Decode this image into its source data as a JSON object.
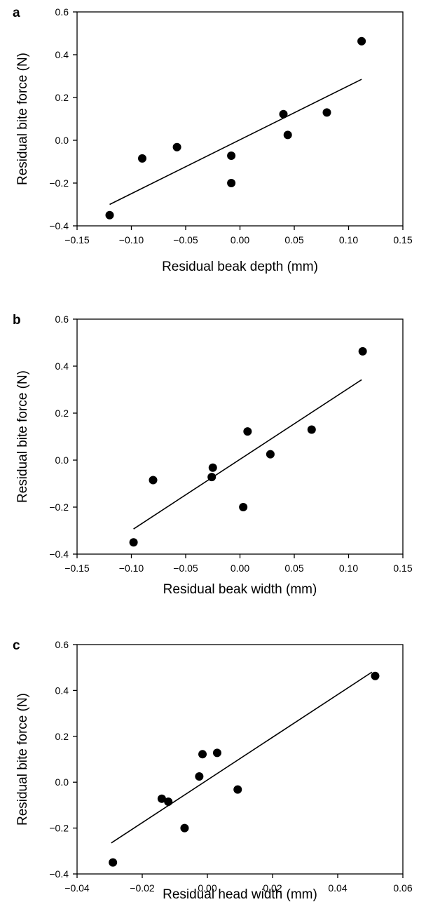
{
  "chart_data": [
    {
      "type": "scatter",
      "panel_label": "a",
      "title": "",
      "xlabel": "Residual beak depth (mm)",
      "ylabel": "Residual bite force (N)",
      "xlim": [
        -0.15,
        0.15
      ],
      "ylim": [
        -0.4,
        0.6
      ],
      "xticks": [
        "−0.15",
        "−0.10",
        "−0.05",
        "0.00",
        "0.05",
        "0.10",
        "0.15"
      ],
      "yticks": [
        "−0.4",
        "−0.2",
        "0.0",
        "0.2",
        "0.4",
        "0.6"
      ],
      "grid": false,
      "points": [
        {
          "x": -0.12,
          "y": -0.35
        },
        {
          "x": -0.09,
          "y": -0.085
        },
        {
          "x": -0.058,
          "y": -0.032
        },
        {
          "x": -0.008,
          "y": -0.072
        },
        {
          "x": -0.008,
          "y": -0.2
        },
        {
          "x": 0.04,
          "y": 0.122
        },
        {
          "x": 0.044,
          "y": 0.025
        },
        {
          "x": 0.08,
          "y": 0.13
        },
        {
          "x": 0.112,
          "y": 0.463
        }
      ],
      "trendline": {
        "x": [
          -0.12,
          0.112
        ],
        "y": [
          -0.3,
          0.285
        ]
      }
    },
    {
      "type": "scatter",
      "panel_label": "b",
      "title": "",
      "xlabel": "Residual beak width (mm)",
      "ylabel": "Residual bite force (N)",
      "xlim": [
        -0.15,
        0.15
      ],
      "ylim": [
        -0.4,
        0.6
      ],
      "xticks": [
        "−0.15",
        "−0.10",
        "−0.05",
        "0.00",
        "0.05",
        "0.10",
        "0.15"
      ],
      "yticks": [
        "−0.4",
        "−0.2",
        "0.0",
        "0.2",
        "0.4",
        "0.6"
      ],
      "grid": false,
      "points": [
        {
          "x": -0.098,
          "y": -0.35
        },
        {
          "x": -0.08,
          "y": -0.085
        },
        {
          "x": -0.025,
          "y": -0.032
        },
        {
          "x": -0.026,
          "y": -0.072
        },
        {
          "x": 0.003,
          "y": -0.2
        },
        {
          "x": 0.007,
          "y": 0.122
        },
        {
          "x": 0.028,
          "y": 0.025
        },
        {
          "x": 0.066,
          "y": 0.13
        },
        {
          "x": 0.113,
          "y": 0.463
        }
      ],
      "trendline": {
        "x": [
          -0.098,
          0.112
        ],
        "y": [
          -0.293,
          0.342
        ]
      }
    },
    {
      "type": "scatter",
      "panel_label": "c",
      "title": "",
      "xlabel": "Residual head width (mm)",
      "ylabel": "Residual bite force (N)",
      "xlim": [
        -0.04,
        0.06
      ],
      "ylim": [
        -0.4,
        0.6
      ],
      "xticks": [
        "−0.04",
        "−0.02",
        "0.00",
        "0.02",
        "0.04",
        "0.06"
      ],
      "yticks": [
        "−0.4",
        "−0.2",
        "0.0",
        "0.2",
        "0.4",
        "0.6"
      ],
      "grid": false,
      "points": [
        {
          "x": -0.029,
          "y": -0.35
        },
        {
          "x": -0.014,
          "y": -0.072
        },
        {
          "x": -0.012,
          "y": -0.085
        },
        {
          "x": -0.007,
          "y": -0.2
        },
        {
          "x": -0.0025,
          "y": 0.025
        },
        {
          "x": -0.0015,
          "y": 0.122
        },
        {
          "x": 0.003,
          "y": 0.128
        },
        {
          "x": 0.0093,
          "y": -0.032
        },
        {
          "x": 0.0515,
          "y": 0.463
        }
      ],
      "trendline": {
        "x": [
          -0.0295,
          0.0505
        ],
        "y": [
          -0.265,
          0.48
        ]
      }
    }
  ]
}
